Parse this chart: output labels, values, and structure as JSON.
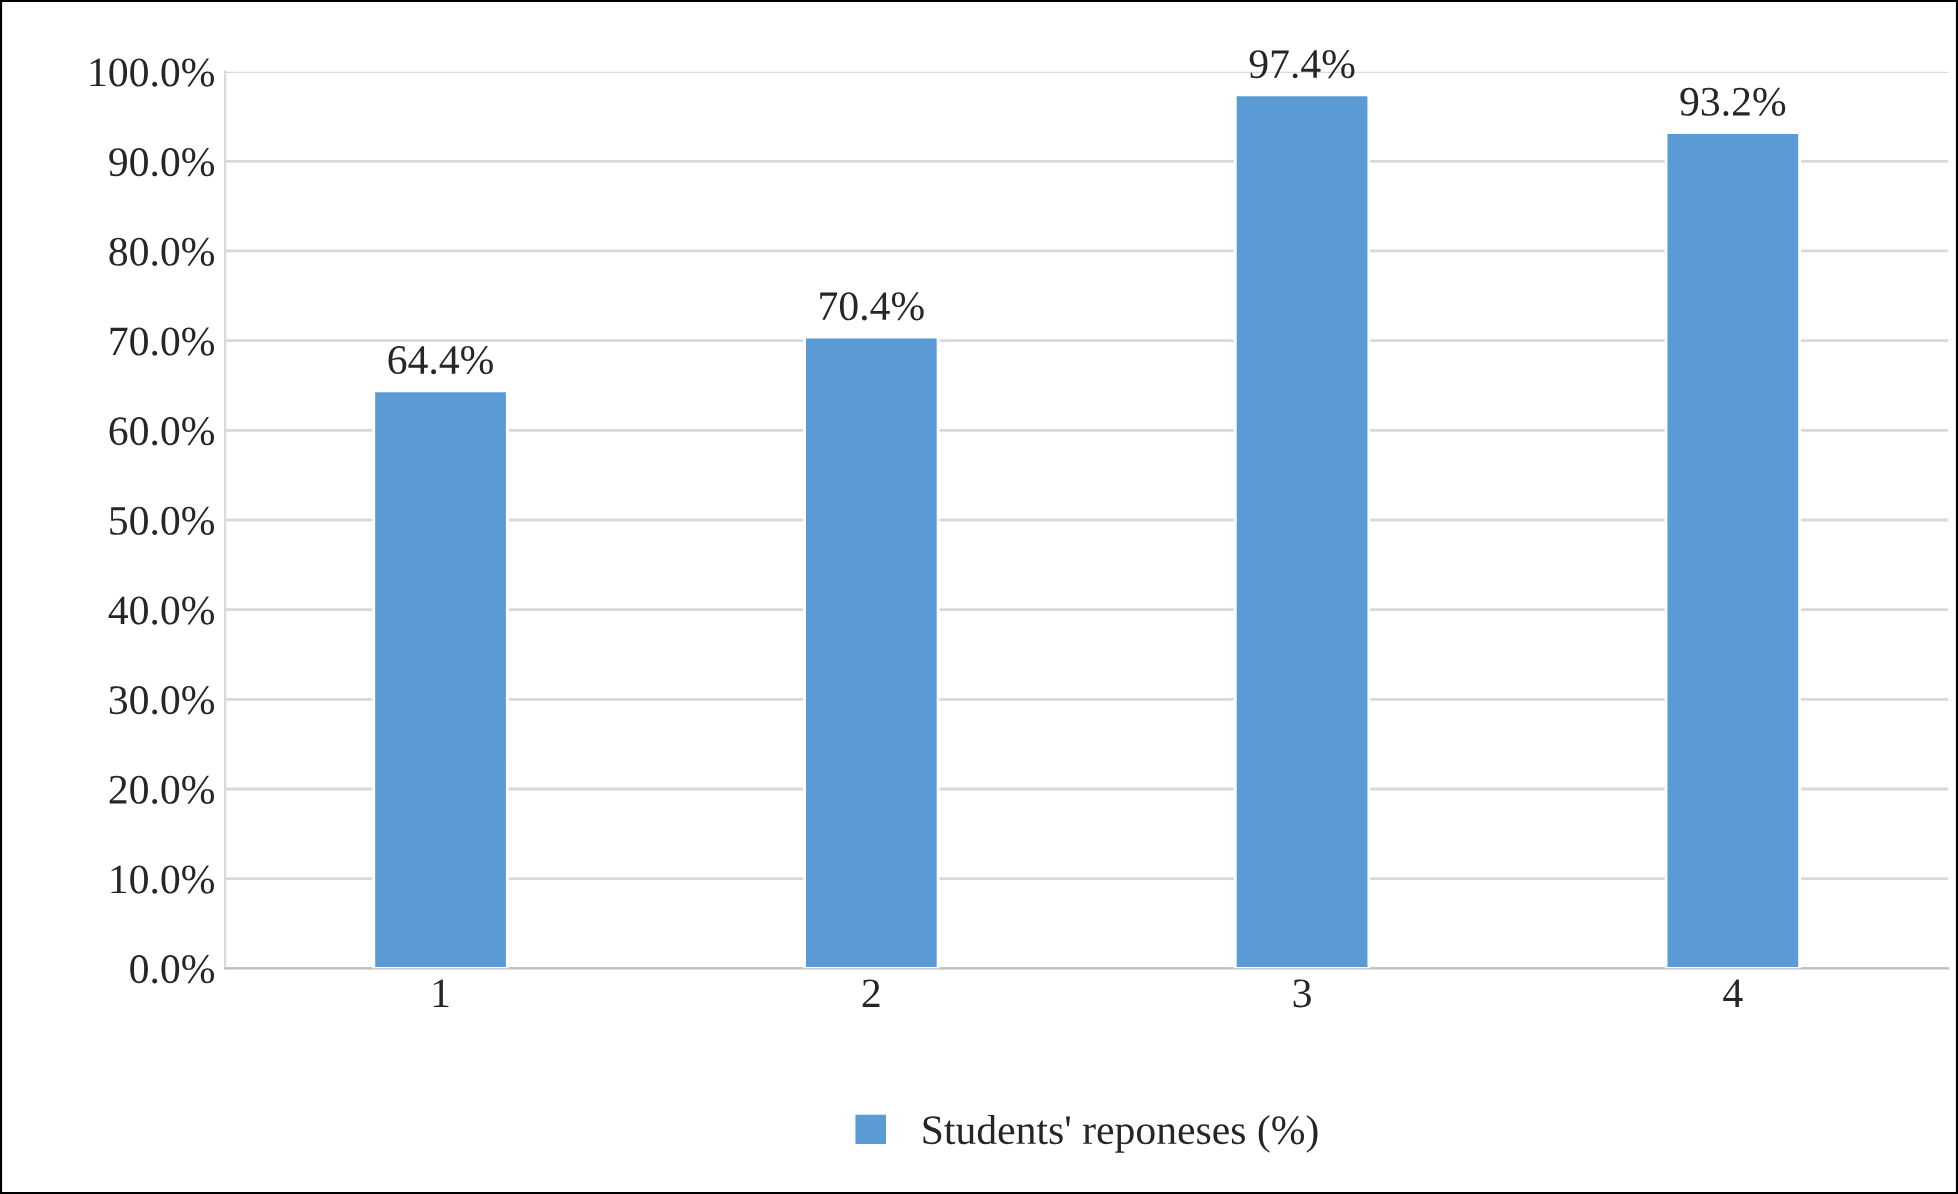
{
  "chart_data": {
    "type": "bar",
    "categories": [
      "1",
      "2",
      "3",
      "4"
    ],
    "series": [
      {
        "name": "Students' reponeses (%)",
        "color": "#5b9bd5",
        "values": [
          64.4,
          70.4,
          97.4,
          93.2
        ],
        "value_labels": [
          "64.4%",
          "70.4%",
          "97.4%",
          "93.2%"
        ]
      }
    ],
    "ylim": [
      0,
      100
    ],
    "yticks": [
      {
        "value": 0,
        "label": "0.0%"
      },
      {
        "value": 10,
        "label": "10.0%"
      },
      {
        "value": 20,
        "label": "20.0%"
      },
      {
        "value": 30,
        "label": "30.0%"
      },
      {
        "value": 40,
        "label": "40.0%"
      },
      {
        "value": 50,
        "label": "50.0%"
      },
      {
        "value": 60,
        "label": "60.0%"
      },
      {
        "value": 70,
        "label": "70.0%"
      },
      {
        "value": 80,
        "label": "80.0%"
      },
      {
        "value": 90,
        "label": "90.0%"
      },
      {
        "value": 100,
        "label": "100.0%"
      }
    ],
    "grid": "y",
    "legend": "bottom"
  }
}
